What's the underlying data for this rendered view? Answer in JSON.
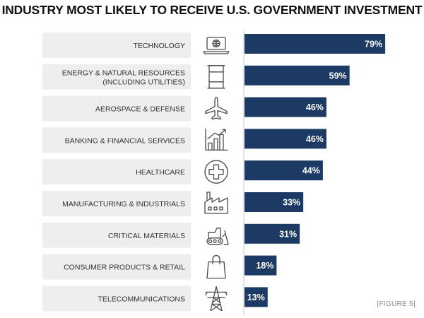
{
  "title": "INDUSTRY MOST LIKELY TO RECEIVE U.S. GOVERNMENT INVESTMENT",
  "figure_note": "[FIGURE 5]",
  "colors": {
    "bar": "#1c3a63",
    "label_box": "#eeeeee",
    "divider": "#c8c8c8",
    "icon": "#4a4a4a"
  },
  "chart_data": {
    "type": "bar",
    "orientation": "horizontal",
    "title": "INDUSTRY MOST LIKELY TO RECEIVE U.S. GOVERNMENT INVESTMENT",
    "categories": [
      [
        "TECHNOLOGY"
      ],
      [
        "ENERGY & NATURAL RESOURCES",
        "(INCLUDING UTILITIES)"
      ],
      [
        "AEROSPACE & DEFENSE"
      ],
      [
        "BANKING & FINANCIAL SERVICES"
      ],
      [
        "HEALTHCARE"
      ],
      [
        "MANUFACTURING & INDUSTRIALS"
      ],
      [
        "CRITICAL MATERIALS"
      ],
      [
        "CONSUMER PRODUCTS & RETAIL"
      ],
      [
        "TELECOMMUNICATIONS"
      ]
    ],
    "values": [
      79,
      59,
      46,
      46,
      44,
      33,
      31,
      18,
      13
    ],
    "value_labels": [
      "79%",
      "59%",
      "46%",
      "46%",
      "44%",
      "33%",
      "31%",
      "18%",
      "13%"
    ],
    "icons": [
      "laptop-globe-icon",
      "oil-barrel-icon",
      "airplane-icon",
      "bar-chart-growth-icon",
      "medical-cross-icon",
      "factory-icon",
      "bulldozer-icon",
      "shopping-bag-icon",
      "transmission-tower-icon"
    ],
    "xlim": [
      0,
      100
    ],
    "unit": "%",
    "grid": false
  }
}
